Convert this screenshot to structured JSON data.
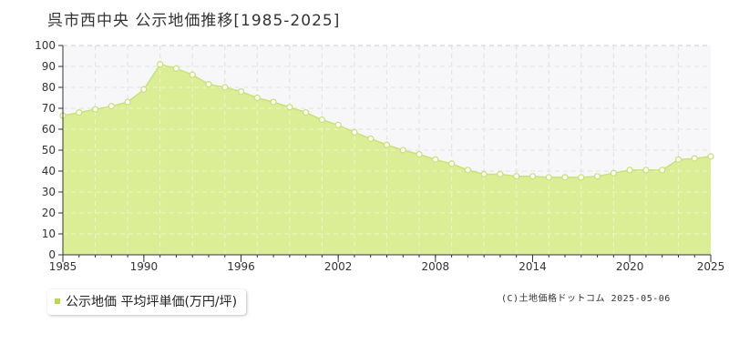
{
  "title": "呉市西中央 公示地価推移[1985-2025]",
  "legend": {
    "label": "公示地価 平均坪単価(万円/坪)"
  },
  "credit": "(C)土地価格ドットコム 2025-05-06",
  "colors": {
    "fill": "#dcee95",
    "line": "#c8e27a",
    "marker_stroke": "#c8e27a",
    "marker_fill": "#ffffff",
    "grid": "#cccccc",
    "axis": "#333333",
    "plot_bg_upper": "#f7f7f9"
  },
  "chart_data": {
    "type": "area",
    "title": "呉市西中央 公示地価推移[1985-2025]",
    "xlabel": "",
    "ylabel": "",
    "x": [
      1985,
      1986,
      1987,
      1988,
      1989,
      1990,
      1991,
      1992,
      1993,
      1994,
      1995,
      1996,
      1997,
      1998,
      1999,
      2000,
      2001,
      2002,
      2003,
      2004,
      2005,
      2006,
      2007,
      2008,
      2009,
      2010,
      2011,
      2012,
      2013,
      2014,
      2015,
      2016,
      2017,
      2018,
      2019,
      2020,
      2021,
      2022,
      2023,
      2024,
      2025
    ],
    "series": [
      {
        "name": "公示地価 平均坪単価(万円/坪)",
        "values": [
          66.5,
          68,
          69.5,
          71,
          73,
          79,
          91,
          89,
          86,
          81.5,
          80,
          78,
          75,
          73,
          70.5,
          68,
          64.5,
          62,
          58.5,
          55.5,
          52.5,
          50,
          48,
          45.5,
          43.5,
          40.5,
          38.5,
          38.5,
          37.5,
          37.5,
          37,
          37,
          37,
          37.5,
          39,
          40.5,
          40.5,
          40.5,
          45.5,
          46,
          47
        ]
      }
    ],
    "x_ticks": [
      "1985",
      "1990",
      "1996",
      "2002",
      "2008",
      "2014",
      "2020",
      "2025"
    ],
    "x_tick_values": [
      1985,
      1990,
      1996,
      2002,
      2008,
      2014,
      2020,
      2025
    ],
    "y_ticks": [
      "0",
      "10",
      "20",
      "30",
      "40",
      "50",
      "60",
      "70",
      "80",
      "90",
      "100"
    ],
    "ylim": [
      0,
      100
    ],
    "xlim": [
      1985,
      2025
    ],
    "grid": true,
    "legend_position": "bottom-left"
  }
}
